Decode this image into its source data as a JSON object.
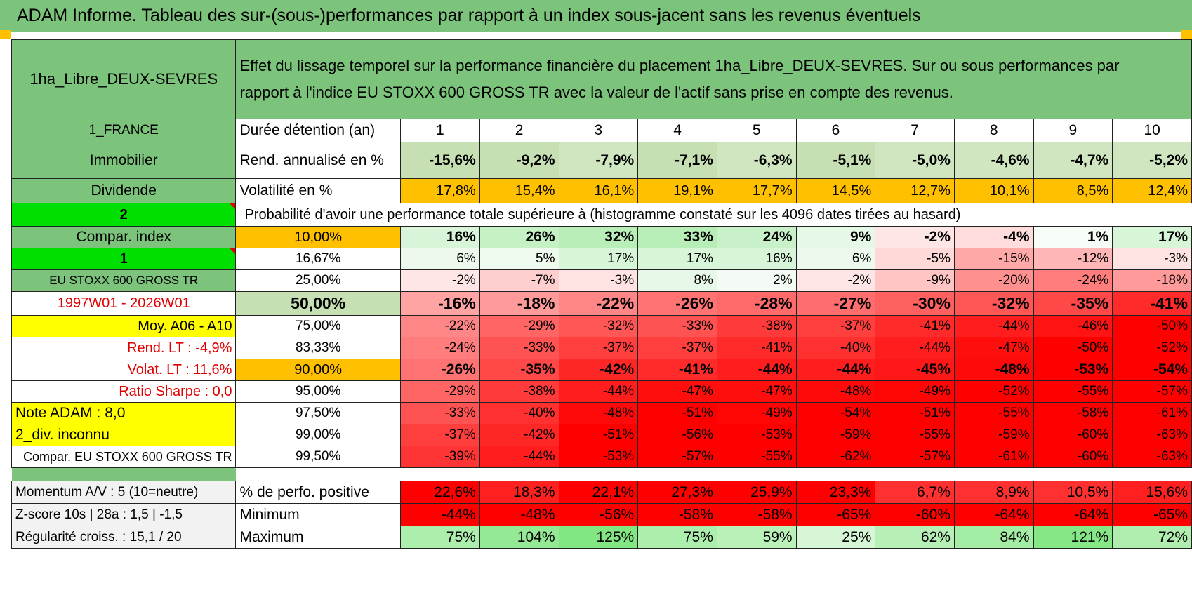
{
  "title": "ADAM Informe. Tableau des sur-(sous-)performances par rapport à un index sous-jacent sans les revenus éventuels",
  "header": {
    "asset_name": "1ha_Libre_DEUX-SEVRES",
    "description": "Effet du lissage temporel sur la performance financière du placement 1ha_Libre_DEUX-SEVRES. Sur ou sous performances par rapport à l'indice EU STOXX 600 GROSS TR avec la valeur de l'actif sans prise en compte des revenus."
  },
  "left_labels": {
    "country": "1_FRANCE",
    "category": "Immobilier",
    "type": "Dividende",
    "num2": "2",
    "compar_index": "Compar. index",
    "num1": "1",
    "index_name": "EU STOXX 600 GROSS TR",
    "period": "1997W01 - 2026W01",
    "moy": "Moy. A06 - A10",
    "rend_lt": "Rend. LT :    -4,9%",
    "volat_lt": "Volat. LT :    11,6%",
    "sharpe": "Ratio Sharpe :    0,0",
    "note": "Note ADAM : 8,0",
    "div": "2_div. inconnu",
    "compar_full": "Compar. EU STOXX 600 GROSS TR"
  },
  "table": {
    "duration_label": "Durée détention (an)",
    "years": [
      "1",
      "2",
      "3",
      "4",
      "5",
      "6",
      "7",
      "8",
      "9",
      "10"
    ],
    "rend_label": "Rend. annualisé en %",
    "rend": [
      "-15,6%",
      "-9,2%",
      "-7,9%",
      "-7,1%",
      "-6,3%",
      "-5,1%",
      "-5,0%",
      "-4,6%",
      "-4,7%",
      "-5,2%"
    ],
    "vol_label": "Volatilité en %",
    "vol": [
      "17,8%",
      "15,4%",
      "16,1%",
      "19,1%",
      "17,7%",
      "14,5%",
      "12,7%",
      "10,1%",
      "8,5%",
      "12,4%"
    ],
    "prob_label": "Probabilité d'avoir une performance totale supérieure à (histogramme constaté sur les 4096 dates tirées au hasard)",
    "pct_rows": [
      {
        "p": "10,00%",
        "v": [
          "16%",
          "26%",
          "32%",
          "33%",
          "24%",
          "9%",
          "-2%",
          "-4%",
          "1%",
          "17%"
        ]
      },
      {
        "p": "16,67%",
        "v": [
          "6%",
          "5%",
          "17%",
          "17%",
          "16%",
          "6%",
          "-5%",
          "-15%",
          "-12%",
          "-3%"
        ]
      },
      {
        "p": "25,00%",
        "v": [
          "-2%",
          "-7%",
          "-3%",
          "8%",
          "2%",
          "-2%",
          "-9%",
          "-20%",
          "-24%",
          "-18%"
        ]
      },
      {
        "p": "50,00%",
        "v": [
          "-16%",
          "-18%",
          "-22%",
          "-26%",
          "-28%",
          "-27%",
          "-30%",
          "-32%",
          "-35%",
          "-41%"
        ]
      },
      {
        "p": "75,00%",
        "v": [
          "-22%",
          "-29%",
          "-32%",
          "-33%",
          "-38%",
          "-37%",
          "-41%",
          "-44%",
          "-46%",
          "-50%"
        ]
      },
      {
        "p": "83,33%",
        "v": [
          "-24%",
          "-33%",
          "-37%",
          "-37%",
          "-41%",
          "-40%",
          "-44%",
          "-47%",
          "-50%",
          "-52%"
        ]
      },
      {
        "p": "90,00%",
        "v": [
          "-26%",
          "-35%",
          "-42%",
          "-41%",
          "-44%",
          "-44%",
          "-45%",
          "-48%",
          "-53%",
          "-54%"
        ]
      },
      {
        "p": "95,00%",
        "v": [
          "-29%",
          "-38%",
          "-44%",
          "-47%",
          "-47%",
          "-48%",
          "-49%",
          "-52%",
          "-55%",
          "-57%"
        ]
      },
      {
        "p": "97,50%",
        "v": [
          "-33%",
          "-40%",
          "-48%",
          "-51%",
          "-49%",
          "-54%",
          "-51%",
          "-55%",
          "-58%",
          "-61%"
        ]
      },
      {
        "p": "99,00%",
        "v": [
          "-37%",
          "-42%",
          "-51%",
          "-56%",
          "-53%",
          "-59%",
          "-55%",
          "-59%",
          "-60%",
          "-63%"
        ]
      },
      {
        "p": "99,50%",
        "v": [
          "-39%",
          "-44%",
          "-53%",
          "-57%",
          "-55%",
          "-62%",
          "-57%",
          "-61%",
          "-60%",
          "-63%"
        ]
      }
    ]
  },
  "stats": {
    "momentum_label": "Momentum A/V : 5 (10=neutre)",
    "zscore_label": "Z-score 10s | 28a : 1,5 | -1,5",
    "regular_label": "Régularité croiss. : 15,1 / 20",
    "pos_label": "% de perfo. positive",
    "pos": [
      "22,6%",
      "18,3%",
      "22,1%",
      "27,3%",
      "25,9%",
      "23,3%",
      "6,7%",
      "8,9%",
      "10,5%",
      "15,6%"
    ],
    "min_label": "Minimum",
    "min": [
      "-44%",
      "-48%",
      "-56%",
      "-58%",
      "-58%",
      "-65%",
      "-60%",
      "-64%",
      "-64%",
      "-65%"
    ],
    "max_label": "Maximum",
    "max": [
      "75%",
      "104%",
      "125%",
      "75%",
      "59%",
      "25%",
      "62%",
      "84%",
      "121%",
      "72%"
    ]
  }
}
